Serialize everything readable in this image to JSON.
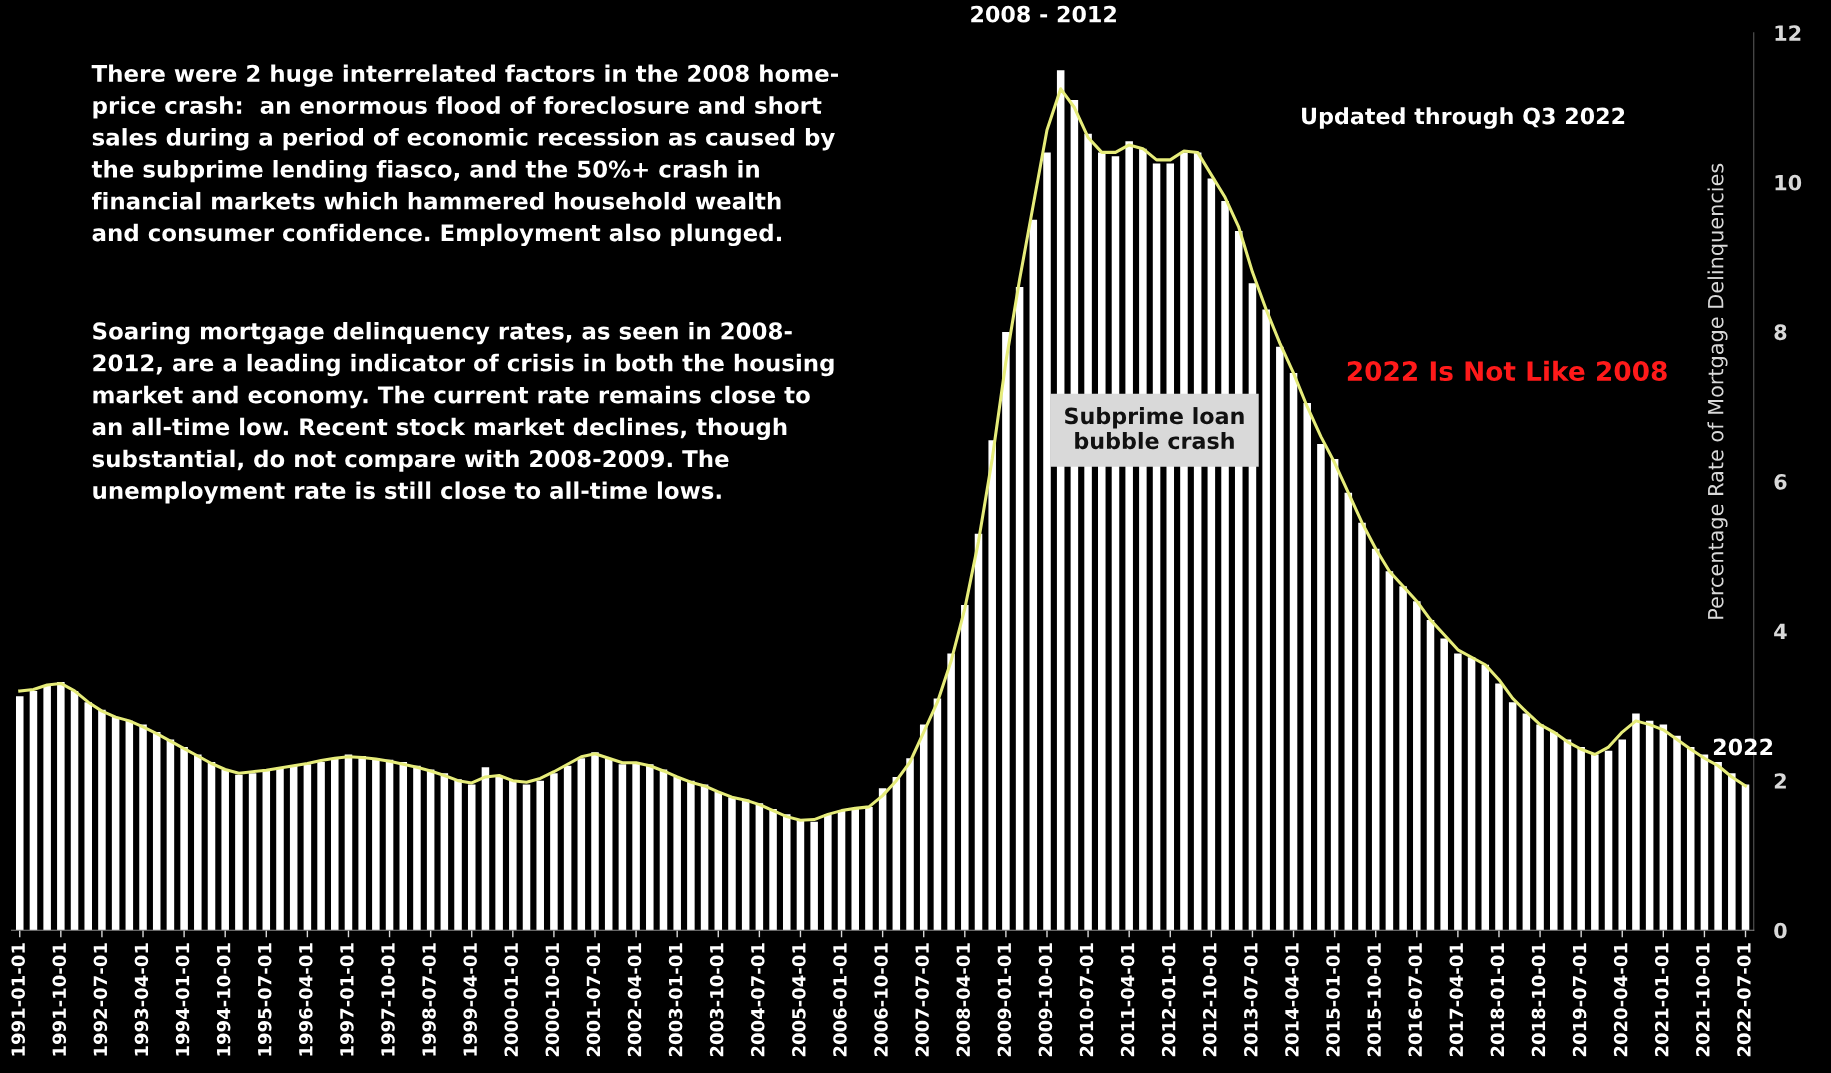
{
  "chart_data": {
    "type": "bar",
    "ylabel": "Percentage Rate of Mortgage Delinquencies",
    "categories": [
      "1991-01-01",
      null,
      null,
      "1991-10-01",
      null,
      null,
      "1992-07-01",
      null,
      null,
      "1993-04-01",
      null,
      null,
      "1994-01-01",
      null,
      null,
      "1994-10-01",
      null,
      null,
      "1995-07-01",
      null,
      null,
      "1996-04-01",
      null,
      null,
      "1997-01-01",
      null,
      null,
      "1997-10-01",
      null,
      null,
      "1998-07-01",
      null,
      null,
      "1999-04-01",
      null,
      null,
      "2000-01-01",
      null,
      null,
      "2000-10-01",
      null,
      null,
      "2001-07-01",
      null,
      null,
      "2002-04-01",
      null,
      null,
      "2003-01-01",
      null,
      null,
      "2003-10-01",
      null,
      null,
      "2004-07-01",
      null,
      null,
      "2005-04-01",
      null,
      null,
      "2006-01-01",
      null,
      null,
      "2006-10-01",
      null,
      null,
      "2007-07-01",
      null,
      null,
      "2008-04-01",
      null,
      null,
      "2009-01-01",
      null,
      null,
      "2009-10-01",
      null,
      null,
      "2010-07-01",
      null,
      null,
      "2011-04-01",
      null,
      null,
      "2012-01-01",
      null,
      null,
      "2012-10-01",
      null,
      null,
      "2013-07-01",
      null,
      null,
      "2014-04-01",
      null,
      null,
      "2015-01-01",
      null,
      null,
      "2015-10-01",
      null,
      null,
      "2016-07-01",
      null,
      null,
      "2017-04-01",
      null,
      null,
      "2018-01-01",
      null,
      null,
      "2018-10-01",
      null,
      null,
      "2019-07-01",
      null,
      null,
      "2020-04-01",
      null,
      null,
      "2021-01-01",
      null,
      null,
      "2021-10-01",
      null,
      null,
      "2022-07-01"
    ],
    "series": [
      {
        "color": "#ffffff",
        "values": [
          3.13,
          3.2,
          3.27,
          3.32,
          3.2,
          3.05,
          2.95,
          2.85,
          2.8,
          2.75,
          2.65,
          2.55,
          2.45,
          2.35,
          2.25,
          2.15,
          2.08,
          2.1,
          2.15,
          2.18,
          2.2,
          2.22,
          2.25,
          2.3,
          2.35,
          2.33,
          2.3,
          2.28,
          2.25,
          2.2,
          2.15,
          2.1,
          2.02,
          1.95,
          2.18,
          2.05,
          2.0,
          1.95,
          2.0,
          2.1,
          2.2,
          2.3,
          2.38,
          2.3,
          2.22,
          2.25,
          2.22,
          2.15,
          2.05,
          2.0,
          1.95,
          1.85,
          1.78,
          1.75,
          1.7,
          1.62,
          1.55,
          1.47,
          1.45,
          1.55,
          1.6,
          1.62,
          1.65,
          1.9,
          2.05,
          2.3,
          2.75,
          3.1,
          3.7,
          4.35,
          5.3,
          6.55,
          8.0,
          8.6,
          9.5,
          10.4,
          11.5,
          11.1,
          10.65,
          10.4,
          10.35,
          10.55,
          10.45,
          10.25,
          10.25,
          10.4,
          10.4,
          10.05,
          9.75,
          9.35,
          8.65,
          8.3,
          7.8,
          7.45,
          7.05,
          6.5,
          6.3,
          5.85,
          5.45,
          5.1,
          4.8,
          4.6,
          4.4,
          4.15,
          3.9,
          3.7,
          3.65,
          3.55,
          3.3,
          3.05,
          2.9,
          2.75,
          2.65,
          2.55,
          2.45,
          2.35,
          2.4,
          2.55,
          2.9,
          2.8,
          2.75,
          2.6,
          2.45,
          2.35,
          2.25,
          2.1,
          1.95
        ]
      },
      {
        "type": "line",
        "color": "#e6ec7a",
        "values": [
          3.2,
          3.22,
          3.28,
          3.3,
          3.2,
          3.05,
          2.93,
          2.85,
          2.8,
          2.72,
          2.63,
          2.53,
          2.43,
          2.33,
          2.23,
          2.15,
          2.1,
          2.12,
          2.14,
          2.17,
          2.2,
          2.23,
          2.27,
          2.3,
          2.32,
          2.31,
          2.29,
          2.26,
          2.22,
          2.18,
          2.13,
          2.07,
          2.0,
          1.97,
          2.05,
          2.07,
          2.0,
          1.98,
          2.03,
          2.12,
          2.22,
          2.32,
          2.36,
          2.3,
          2.24,
          2.24,
          2.2,
          2.13,
          2.05,
          1.98,
          1.93,
          1.85,
          1.78,
          1.74,
          1.68,
          1.6,
          1.52,
          1.47,
          1.48,
          1.55,
          1.6,
          1.63,
          1.65,
          1.8,
          2.0,
          2.25,
          2.65,
          3.05,
          3.6,
          4.3,
          5.2,
          6.3,
          7.6,
          8.7,
          9.7,
          10.7,
          11.25,
          11.0,
          10.6,
          10.4,
          10.4,
          10.5,
          10.45,
          10.3,
          10.3,
          10.42,
          10.4,
          10.1,
          9.8,
          9.4,
          8.8,
          8.3,
          7.85,
          7.45,
          7.0,
          6.6,
          6.25,
          5.85,
          5.45,
          5.1,
          4.8,
          4.6,
          4.4,
          4.15,
          3.95,
          3.75,
          3.65,
          3.55,
          3.35,
          3.1,
          2.92,
          2.75,
          2.65,
          2.52,
          2.42,
          2.35,
          2.45,
          2.65,
          2.8,
          2.75,
          2.68,
          2.55,
          2.42,
          2.3,
          2.2,
          2.05,
          1.93
        ]
      }
    ],
    "ylim": [
      0,
      12
    ],
    "yticks": [
      0,
      2,
      4,
      6,
      8,
      10,
      12
    ],
    "grid": false,
    "legend": false,
    "annotations": [
      "There were 2 huge interrelated factors in the 2008 home-\nprice crash:  an enormous flood of foreclosure and short\nsales during a period of economic recession as caused by\nthe subprime lending fiasco, and the 50%+ crash in\nfinancial markets which hammered household wealth\nand consumer confidence. Employment also plunged.",
      "Soaring mortgage delinquency rates, as seen in 2008-\n2012, are a leading indicator of crisis in both the housing\nmarket and economy. The current rate remains close to\nan all-time low. Recent stock market declines, though\nsubstantial, do not compare with 2008-2009. The\nunemployment rate is still close to all-time lows.",
      "2008 - 2012",
      "Updated through Q3 2022",
      "2022 Is Not Like 2008",
      "Subprime loan\nbubble crash",
      "2022"
    ]
  }
}
